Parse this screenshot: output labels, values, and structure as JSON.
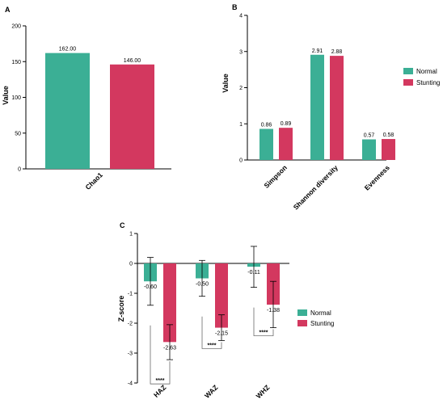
{
  "colors": {
    "normal": "#3BAF95",
    "stunting": "#D3385F"
  },
  "chart_data": [
    {
      "panel": "A",
      "type": "bar",
      "categories": [
        "Chao1"
      ],
      "series": [
        {
          "name": "Normal",
          "values": [
            162.0
          ],
          "labels": [
            "162.00"
          ]
        },
        {
          "name": "Stunting",
          "values": [
            146.0
          ],
          "labels": [
            "146.00"
          ]
        }
      ],
      "ylabel": "Value",
      "ylim": [
        0,
        200
      ],
      "yticks": [
        0,
        50,
        100,
        150,
        200
      ],
      "ytick_labels": [
        "0",
        "50",
        "100",
        "150",
        "200"
      ],
      "xtick_labels": [
        "Chao1"
      ]
    },
    {
      "panel": "B",
      "type": "bar",
      "categories": [
        "Simpson",
        "Shannon diversity",
        "Evenness"
      ],
      "series": [
        {
          "name": "Normal",
          "values": [
            0.86,
            2.91,
            0.57
          ],
          "labels": [
            "0.86",
            "2.91",
            "0.57"
          ]
        },
        {
          "name": "Stunting",
          "values": [
            0.89,
            2.88,
            0.58
          ],
          "labels": [
            "0.89",
            "2.88",
            "0.58"
          ]
        }
      ],
      "ylabel": "Value",
      "ylim": [
        0,
        4
      ],
      "yticks": [
        0,
        1,
        2,
        3,
        4
      ],
      "ytick_labels": [
        "0",
        "1",
        "2",
        "3",
        "4"
      ],
      "xtick_labels": [
        "Simpson",
        "Shannon diversity",
        "Evenness"
      ],
      "legend": {
        "position": "right",
        "entries": [
          "Normal",
          "Stunting"
        ]
      }
    },
    {
      "panel": "C",
      "type": "bar",
      "categories": [
        "HAZ",
        "WAZ",
        "WHZ"
      ],
      "series": [
        {
          "name": "Normal",
          "values": [
            -0.6,
            -0.5,
            -0.11
          ],
          "err_low": [
            -1.4,
            -1.1,
            -0.8
          ],
          "err_high": [
            0.2,
            0.1,
            0.57
          ],
          "labels": [
            "-0.60",
            "-0.50",
            "-0.11"
          ]
        },
        {
          "name": "Stunting",
          "values": [
            -2.63,
            -2.15,
            -1.38
          ],
          "err_low": [
            -3.22,
            -2.58,
            -2.15
          ],
          "err_high": [
            -2.05,
            -1.72,
            -0.6
          ],
          "labels": [
            "-2.63",
            "-2.15",
            "-1.38"
          ]
        }
      ],
      "significance": [
        "****",
        "****",
        "****"
      ],
      "ylabel": "Z-score",
      "ylim": [
        -4,
        1
      ],
      "yticks": [
        -4,
        -3,
        -2,
        -1,
        0,
        1
      ],
      "ytick_labels": [
        "-4",
        "-3",
        "-2",
        "-1",
        "0",
        "1"
      ],
      "xtick_labels": [
        "HAZ",
        "WAZ",
        "WHZ"
      ],
      "legend": {
        "position": "right",
        "entries": [
          "Normal",
          "Stunting"
        ]
      }
    }
  ]
}
